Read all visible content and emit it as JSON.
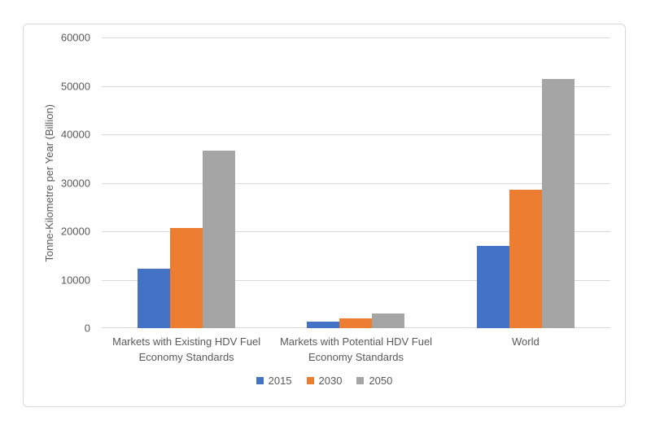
{
  "chart_data": {
    "type": "bar",
    "title": "",
    "categories": [
      "Markets with Existing HDV Fuel Economy Standards",
      "Markets with Potential HDV Fuel Economy Standards",
      "World"
    ],
    "series": [
      {
        "name": "2015",
        "color": "#4472C4",
        "values": [
          12300,
          1300,
          17000
        ]
      },
      {
        "name": "2030",
        "color": "#ED7D31",
        "values": [
          20700,
          2000,
          28500
        ]
      },
      {
        "name": "2050",
        "color": "#A5A5A5",
        "values": [
          36600,
          3100,
          51500
        ]
      }
    ],
    "xlabel": "",
    "ylabel": "Tonne-Kilometre per Year (Billion)",
    "ylim": [
      0,
      60000
    ],
    "yticks": [
      0,
      10000,
      20000,
      30000,
      40000,
      50000,
      60000
    ],
    "ytick_labels": [
      "0",
      "10000",
      "20000",
      "30000",
      "40000",
      "50000",
      "60000"
    ],
    "grid": true,
    "legend_position": "bottom"
  },
  "styles": {
    "grid_color": "#D9D9D9",
    "axis_text_color": "#595959",
    "frame_border_color": "#D9D9D9",
    "background": "#FFFFFF"
  }
}
